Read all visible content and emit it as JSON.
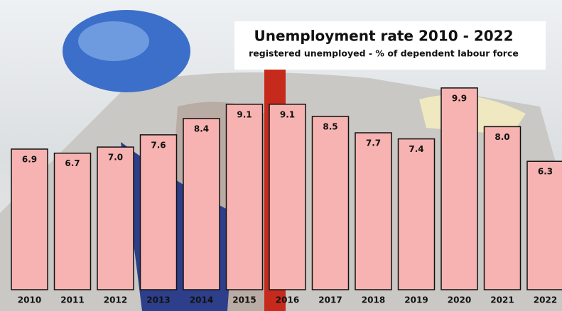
{
  "chart_data": {
    "type": "bar",
    "title": "Unemployment rate 2010 - 2022",
    "subtitle": "registered unemployed - % of dependent labour force",
    "categories": [
      "2010",
      "2011",
      "2012",
      "2013",
      "2014",
      "2015",
      "2016",
      "2017",
      "2018",
      "2019",
      "2020",
      "2021",
      "2022"
    ],
    "values": [
      6.9,
      6.7,
      7.0,
      7.6,
      8.4,
      9.1,
      9.1,
      8.5,
      7.7,
      7.4,
      9.9,
      8.0,
      6.3
    ],
    "value_labels": [
      "6.9",
      "6.7",
      "7.0",
      "7.6",
      "8.4",
      "9.1",
      "9.1",
      "8.5",
      "7.7",
      "7.4",
      "9.9",
      "8.0",
      "6.3"
    ],
    "color": "#f7b3b1"
  }
}
